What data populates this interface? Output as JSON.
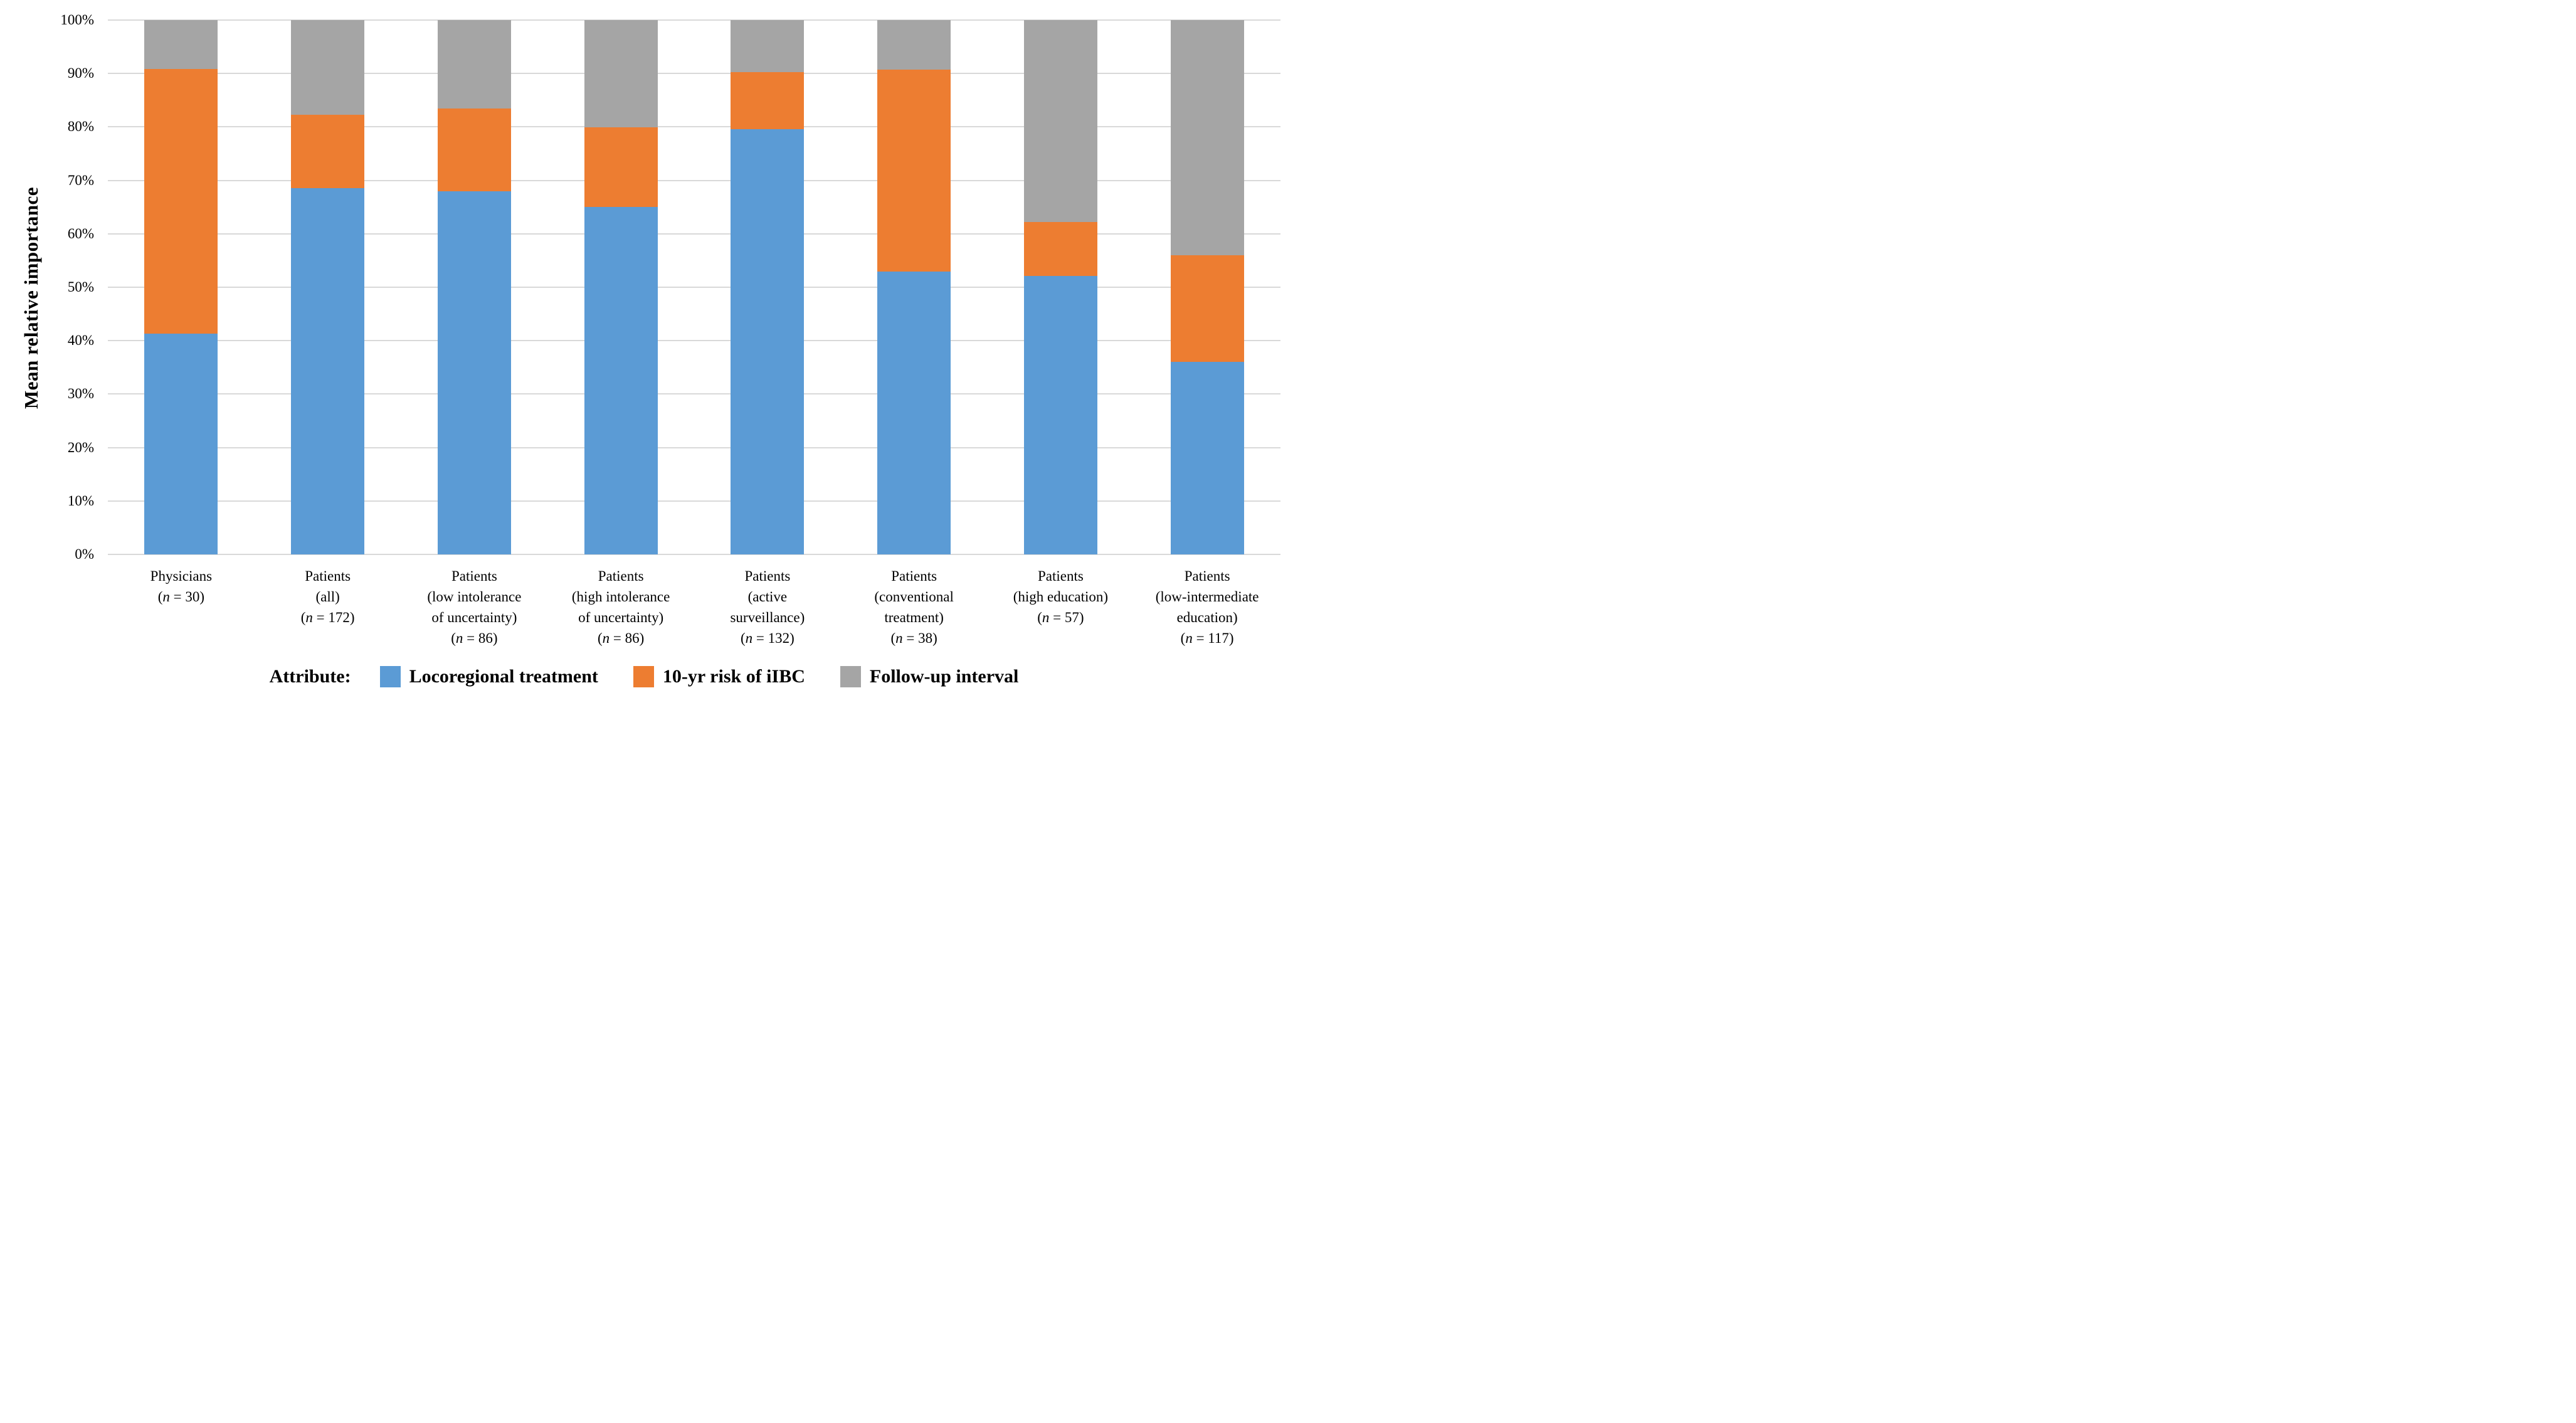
{
  "figure": {
    "y_axis_title": "Mean relative importance",
    "legend_title": "Attribute:"
  },
  "chart_data": {
    "type": "bar",
    "stacked": true,
    "title": "",
    "xlabel": "",
    "ylabel": "Mean relative importance",
    "ylim": [
      0,
      100
    ],
    "ytick_step": 10,
    "ytick_suffix": "%",
    "grid": true,
    "legend_position": "bottom",
    "categories": [
      [
        "Physicians",
        "(n = 30)"
      ],
      [
        "Patients",
        "(all)",
        "(n = 172)"
      ],
      [
        "Patients",
        "(low intolerance",
        "of uncertainty)",
        "(n = 86)"
      ],
      [
        "Patients",
        "(high intolerance",
        "of uncertainty)",
        "(n = 86)"
      ],
      [
        "Patients",
        "(active",
        "surveillance)",
        "(n = 132)"
      ],
      [
        "Patients",
        "(conventional",
        "treatment)",
        "(n = 38)"
      ],
      [
        "Patients",
        "(high education)",
        "(n = 57)"
      ],
      [
        "Patients",
        "(low-intermediate",
        "education)",
        "(n = 117)"
      ]
    ],
    "series": [
      {
        "name": "Locoregional treatment",
        "color": "#5b9bd5",
        "values": [
          41.3,
          68.6,
          68.0,
          65.0,
          79.6,
          52.9,
          52.1,
          36.0
        ]
      },
      {
        "name": "10-yr risk of iIBC",
        "color": "#ed7d31",
        "values": [
          49.5,
          13.7,
          15.4,
          14.9,
          10.7,
          37.8,
          10.1,
          20.0
        ]
      },
      {
        "name": "Follow-up interval",
        "color": "#a5a5a5",
        "values": [
          9.2,
          17.7,
          16.6,
          20.1,
          9.7,
          9.3,
          37.8,
          44.0
        ]
      }
    ],
    "gridline_color": "#d9d9d9"
  }
}
